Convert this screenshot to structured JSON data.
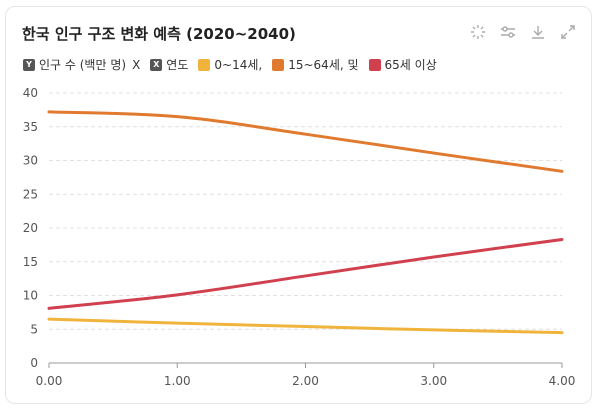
{
  "title": "한국 인구 구조 변화 예측 (2020~2040)",
  "toolbar": {
    "icons": [
      "select-icon",
      "filter-icon",
      "download-icon",
      "expand-icon"
    ]
  },
  "legend": {
    "y_badge": "Y",
    "y_label": "인구 수 (백만 명)",
    "x_sep": "X",
    "x_badge": "X",
    "x_label": "연도",
    "series_labels": [
      "0~14세,",
      "15~64세, 및",
      "65세 이상"
    ]
  },
  "colors": {
    "s0": "#f0b43c",
    "s1": "#e07a2f",
    "s2": "#d1404f",
    "grid": "#e0e0e0",
    "axis": "#999999"
  },
  "chart_data": {
    "type": "line",
    "x": [
      0,
      1,
      2,
      3,
      4
    ],
    "xlim": [
      0,
      4
    ],
    "ylim": [
      0,
      40
    ],
    "x_ticks": [
      "0.00",
      "1.00",
      "2.00",
      "3.00",
      "4.00"
    ],
    "y_ticks": [
      "0",
      "5",
      "10",
      "15",
      "20",
      "25",
      "30",
      "35",
      "40"
    ],
    "grid": true,
    "legend_position": "top-left",
    "series": [
      {
        "name": "0~14세,",
        "values": [
          6.5,
          5.9,
          5.4,
          4.9,
          4.5
        ]
      },
      {
        "name": "15~64세, 및",
        "values": [
          37.2,
          36.5,
          33.9,
          31.1,
          28.4
        ]
      },
      {
        "name": "65세 이상",
        "values": [
          8.1,
          10.1,
          12.9,
          15.7,
          18.3
        ]
      }
    ]
  }
}
